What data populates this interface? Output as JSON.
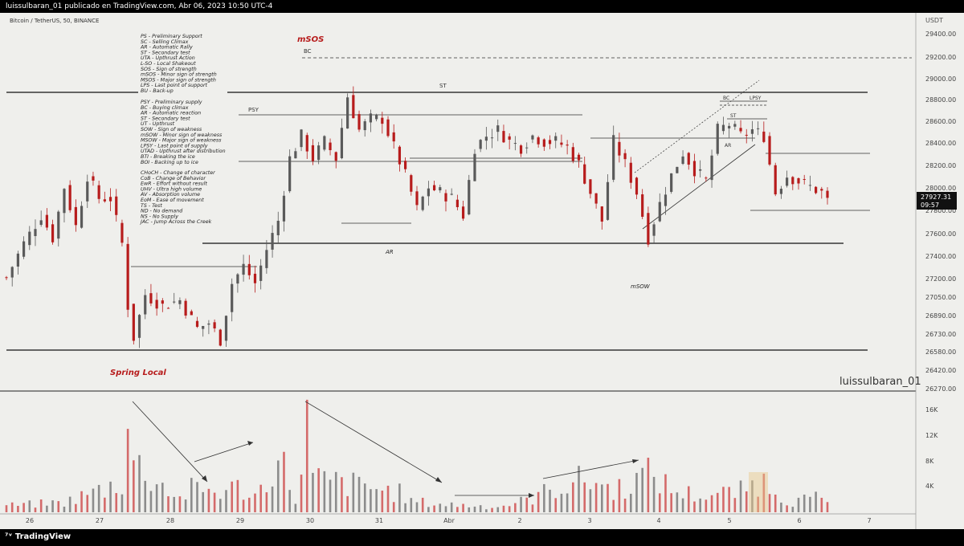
{
  "header": {
    "publish_line": "luissulbaran_01 publicado en TradingView.com, Abr 06, 2023 10:50 UTC-4",
    "symbol_line": "Bitcoin / TetherUS, 50, BINANCE",
    "currency": "USDT",
    "watermark": "luissulbaran_01",
    "brand": "TradingView"
  },
  "legend_block_1": [
    "PS - Preliminary Support",
    "SC - Selling Climax",
    "AR - Automatic Rally",
    "ST - Secondary test",
    "UTA - Upthrust Action",
    "L-SO - Local Shakeout",
    "SOS - Sign of strength",
    "mSOS - Minor sign of strength",
    "MSOS - Major sign of strength",
    "LPS - Last point of support",
    "BU - Back-up"
  ],
  "legend_block_2": [
    "PSY - Preliminary supply",
    "BC - Buying climax",
    "AR - Automatic reaction",
    "ST - Secondary test",
    "UT - Upthrust",
    "SOW - Sign of weakness",
    "mSOW - Minor sign of weakness",
    "MSOW - Major sign of weakness",
    "LPSY - Last point of supply",
    "UTAD - Upthrust after distribution",
    "BTI - Breaking the ice",
    "BOI - Backing up to ice"
  ],
  "legend_block_3": [
    "CHoCH - Change of character",
    "CoB - Change of Behavior",
    "EwR - Effort without result",
    "UHV - Ultra high volume",
    "AV - Absorption volume",
    "EoM - Ease of movement",
    "TS - Test",
    "ND - No demand",
    "NS - No Supply",
    "JAC - Jump Across the Creek"
  ],
  "annotations": {
    "msos": "mSOS",
    "bc": "BC",
    "st": "ST",
    "psy": "PSY",
    "ar": "AR",
    "msow": "mSOW",
    "spring": "Spring Local",
    "bc2": "BC",
    "lpsy": "LPSY",
    "st2": "ST",
    "ar2": "AR"
  },
  "price_badge": {
    "price": "27927.31",
    "countdown": "09:57"
  },
  "colors": {
    "up": "#5a5a5a",
    "down": "#b71c1c",
    "vol_down": "#d46a6a",
    "vol_up": "#8c8c8c",
    "background": "#efefec"
  },
  "chart_data": {
    "type": "candlestick",
    "symbol": "Bitcoin / TetherUS",
    "timeframe": "50",
    "exchange": "BINANCE",
    "x_tick_labels": [
      "26",
      "27",
      "28",
      "29",
      "30",
      "31",
      "Abr",
      "2",
      "3",
      "4",
      "5",
      "6",
      "7"
    ],
    "price_axis_ticks": [
      "29400.00",
      "29200.00",
      "29000.00",
      "28800.00",
      "28600.00",
      "28400.00",
      "28200.00",
      "28000.00",
      "27800.00",
      "27600.00",
      "27400.00",
      "27200.00",
      "27050.00",
      "26890.00",
      "26730.00",
      "26580.00",
      "26420.00",
      "26270.00"
    ],
    "volume_axis_ticks": [
      "16K",
      "12K",
      "8K",
      "4K"
    ],
    "ylim": [
      26270,
      29500
    ],
    "last_price": 27927.31,
    "horizontal_levels": [
      28870,
      27520,
      26600,
      29190
    ],
    "price_path": [
      [
        0,
        27250
      ],
      [
        3,
        27550
      ],
      [
        6,
        27800
      ],
      [
        8,
        27600
      ],
      [
        10,
        28050
      ],
      [
        12,
        27700
      ],
      [
        14,
        28150
      ],
      [
        16,
        27950
      ],
      [
        18,
        27950
      ],
      [
        20,
        27550
      ],
      [
        21,
        27000
      ],
      [
        22,
        26720
      ],
      [
        24,
        27100
      ],
      [
        27,
        27000
      ],
      [
        30,
        27050
      ],
      [
        33,
        26800
      ],
      [
        35,
        26850
      ],
      [
        37,
        26700
      ],
      [
        39,
        27200
      ],
      [
        41,
        27350
      ],
      [
        43,
        27200
      ],
      [
        45,
        27500
      ],
      [
        47,
        27750
      ],
      [
        49,
        28300
      ],
      [
        51,
        28500
      ],
      [
        53,
        28300
      ],
      [
        55,
        28450
      ],
      [
        57,
        28300
      ],
      [
        59,
        28850
      ],
      [
        61,
        28550
      ],
      [
        63,
        28650
      ],
      [
        65,
        28650
      ],
      [
        67,
        28400
      ],
      [
        69,
        28150
      ],
      [
        71,
        27850
      ],
      [
        73,
        28050
      ],
      [
        75,
        28000
      ],
      [
        77,
        27950
      ],
      [
        79,
        27800
      ],
      [
        81,
        28400
      ],
      [
        83,
        28500
      ],
      [
        85,
        28550
      ],
      [
        87,
        28450
      ],
      [
        89,
        28400
      ],
      [
        91,
        28500
      ],
      [
        93,
        28450
      ],
      [
        95,
        28450
      ],
      [
        97,
        28400
      ],
      [
        99,
        28250
      ],
      [
        101,
        28000
      ],
      [
        103,
        27750
      ],
      [
        105,
        28450
      ],
      [
        107,
        28250
      ],
      [
        109,
        28000
      ],
      [
        111,
        27600
      ],
      [
        113,
        27900
      ],
      [
        115,
        28150
      ],
      [
        117,
        28350
      ],
      [
        119,
        28200
      ],
      [
        121,
        28100
      ],
      [
        123,
        28550
      ],
      [
        125,
        28600
      ],
      [
        127,
        28500
      ],
      [
        129,
        28550
      ],
      [
        131,
        28500
      ],
      [
        133,
        28000
      ],
      [
        135,
        28150
      ],
      [
        137,
        28100
      ],
      [
        139,
        28050
      ],
      [
        141,
        28000
      ],
      [
        142,
        27927
      ]
    ],
    "volume_path": [
      [
        0,
        1200
      ],
      [
        10,
        1800
      ],
      [
        20,
        5500
      ],
      [
        21,
        16500
      ],
      [
        22,
        9000
      ],
      [
        30,
        2500
      ],
      [
        32,
        4200
      ],
      [
        37,
        3800
      ],
      [
        40,
        4500
      ],
      [
        43,
        3000
      ],
      [
        45,
        5500
      ],
      [
        46,
        9500
      ],
      [
        48,
        8000
      ],
      [
        50,
        2500
      ],
      [
        51,
        6000
      ],
      [
        52,
        16000
      ],
      [
        53,
        6000
      ],
      [
        60,
        5000
      ],
      [
        63,
        4500
      ],
      [
        68,
        3500
      ],
      [
        70,
        2000
      ],
      [
        75,
        1500
      ],
      [
        85,
        1000
      ],
      [
        90,
        2200
      ],
      [
        95,
        4500
      ],
      [
        100,
        6000
      ],
      [
        102,
        5500
      ],
      [
        105,
        4000
      ],
      [
        110,
        6500
      ],
      [
        112,
        7000
      ],
      [
        115,
        4000
      ],
      [
        120,
        3000
      ],
      [
        125,
        3500
      ],
      [
        128,
        4000
      ],
      [
        130,
        6000
      ],
      [
        131,
        5500
      ],
      [
        133,
        4500
      ],
      [
        135,
        2000
      ],
      [
        140,
        2500
      ],
      [
        142,
        1800
      ]
    ]
  }
}
